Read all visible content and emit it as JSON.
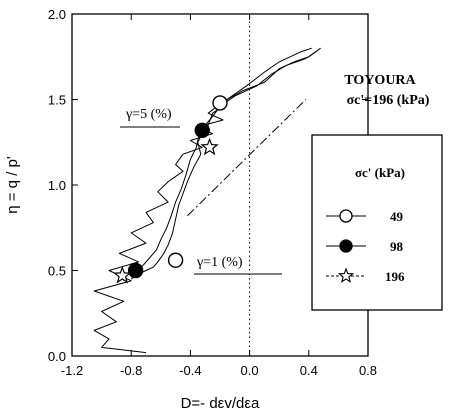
{
  "chart_data": {
    "type": "line",
    "xlabel": "D=- dεv/dεa",
    "ylabel": "η = q / p'",
    "xlim": [
      -1.2,
      0.8
    ],
    "ylim": [
      0.0,
      2.0
    ],
    "x_ticks": [
      "-1.2",
      "-0.8",
      "-0.4",
      "0.0",
      "0.4",
      "0.8"
    ],
    "x_tick_values": [
      -1.2,
      -0.8,
      -0.4,
      0.0,
      0.4,
      0.8
    ],
    "y_ticks": [
      "0.0",
      "0.5",
      "1.0",
      "1.5",
      "2.0"
    ],
    "y_tick_values": [
      0.0,
      0.5,
      1.0,
      1.5,
      2.0
    ],
    "title_right": "TOYOURA",
    "subtitle_right": "σc'=196 (kPa)",
    "annotations": [
      {
        "text": "γ=5 (%)",
        "x": -0.88,
        "y": 1.5
      },
      {
        "text": "γ=1 (%)",
        "x": -0.45,
        "y": 0.53
      }
    ],
    "legend": {
      "title": "σc' (kPa)",
      "placement": "right",
      "entries": [
        {
          "label": "49",
          "marker": "open-circle"
        },
        {
          "label": "98",
          "marker": "filled-circle"
        },
        {
          "label": "196",
          "marker": "open-star"
        }
      ]
    },
    "series": [
      {
        "name": "49",
        "x": [
          0.48,
          0.4,
          0.3,
          0.2,
          0.1,
          -0.05,
          -0.15,
          -0.2,
          -0.25,
          -0.28,
          -0.32,
          -0.35,
          -0.33,
          -0.38,
          -0.42,
          -0.45,
          -0.48,
          -0.5,
          -0.52,
          -0.55,
          -0.58,
          -0.62,
          -0.65,
          -0.7,
          -0.75,
          -0.8
        ],
        "y": [
          1.8,
          1.75,
          1.72,
          1.68,
          1.6,
          1.55,
          1.5,
          1.45,
          1.42,
          1.35,
          1.3,
          1.25,
          1.18,
          1.1,
          1.02,
          0.95,
          0.88,
          0.8,
          0.72,
          0.65,
          0.6,
          0.55,
          0.52,
          0.5,
          0.48,
          0.45
        ]
      },
      {
        "name": "98",
        "x": [
          0.45,
          0.38,
          0.25,
          0.15,
          0.05,
          -0.1,
          -0.2,
          -0.25,
          -0.3,
          -0.34,
          -0.36,
          -0.4,
          -0.43,
          -0.46,
          -0.5,
          -0.53,
          -0.56,
          -0.6,
          -0.63,
          -0.68,
          -0.72,
          -0.76,
          -0.8
        ],
        "y": [
          1.78,
          1.74,
          1.7,
          1.65,
          1.58,
          1.52,
          1.46,
          1.4,
          1.35,
          1.3,
          1.22,
          1.15,
          1.06,
          0.98,
          0.9,
          0.82,
          0.75,
          0.68,
          0.62,
          0.57,
          0.53,
          0.5,
          0.46
        ]
      },
      {
        "name": "196",
        "x": [
          0.42,
          0.35,
          0.2,
          0.1,
          -0.02,
          -0.12,
          -0.22,
          -0.28,
          -0.18,
          -0.35,
          -0.25,
          -0.4,
          -0.32,
          -0.45,
          -0.5,
          -0.45,
          -0.55,
          -0.62,
          -0.55,
          -0.7,
          -0.65,
          -0.8,
          -0.7,
          -0.88,
          -0.75,
          -0.95,
          -0.8,
          -1.05,
          -0.85,
          -1.0,
          -0.9,
          -1.05,
          -0.95,
          -1.0,
          -0.7
        ],
        "y": [
          1.8,
          1.78,
          1.72,
          1.66,
          1.58,
          1.52,
          1.46,
          1.42,
          1.38,
          1.34,
          1.3,
          1.26,
          1.22,
          1.18,
          1.12,
          1.08,
          1.02,
          0.96,
          0.9,
          0.84,
          0.78,
          0.72,
          0.66,
          0.6,
          0.55,
          0.5,
          0.44,
          0.38,
          0.32,
          0.26,
          0.2,
          0.15,
          0.1,
          0.05,
          0.02
        ]
      }
    ],
    "markers": [
      {
        "series": "49",
        "marker": "open-circle",
        "x": -0.2,
        "y": 1.48
      },
      {
        "series": "49",
        "marker": "open-circle",
        "x": -0.5,
        "y": 0.56
      },
      {
        "series": "98",
        "marker": "filled-circle",
        "x": -0.32,
        "y": 1.32
      },
      {
        "series": "98",
        "marker": "filled-circle",
        "x": -0.77,
        "y": 0.5
      },
      {
        "series": "196",
        "marker": "open-star",
        "x": -0.27,
        "y": 1.22
      },
      {
        "series": "196",
        "marker": "open-star",
        "x": -0.86,
        "y": 0.47
      }
    ],
    "reference_lines": [
      {
        "style": "dotted",
        "x": [
          0.0,
          0.0
        ],
        "y": [
          0.0,
          2.0
        ]
      },
      {
        "style": "dash-dot",
        "x": [
          -0.42,
          0.38
        ],
        "y": [
          0.82,
          1.5
        ]
      }
    ]
  }
}
